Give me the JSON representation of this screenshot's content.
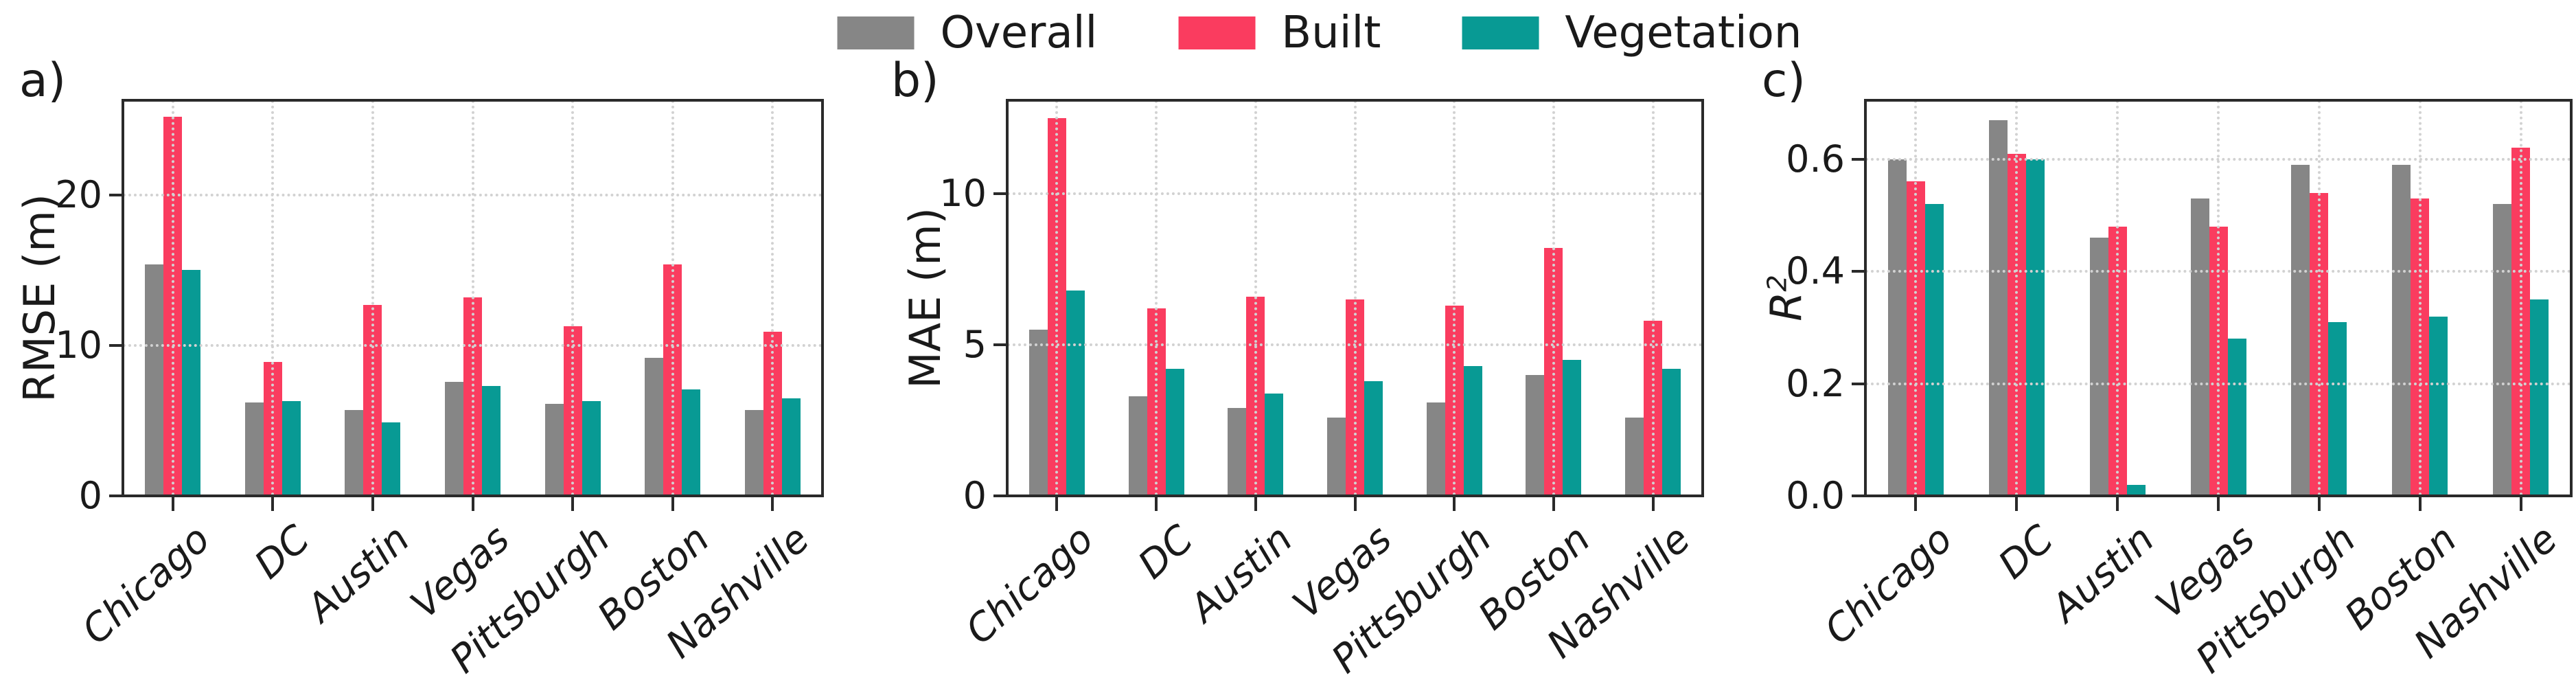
{
  "legend": {
    "items": [
      {
        "label": "Overall",
        "color": "#868686"
      },
      {
        "label": "Built",
        "color": "#fa3c5f"
      },
      {
        "label": "Vegetation",
        "color": "#089a94"
      }
    ]
  },
  "chart_data": [
    {
      "type": "bar",
      "panel_label": "a)",
      "ylabel": "RMSE (m)",
      "ylabel_superscript": "",
      "ylabel_italic": false,
      "categories": [
        "Chicago",
        "DC",
        "Austin",
        "Vegas",
        "Pittsburgh",
        "Boston",
        "Nashville"
      ],
      "xtick_rotation_deg": 42,
      "grid": true,
      "legend_position": "top-center",
      "ylim": [
        0,
        26.3
      ],
      "yticks": [
        {
          "value": 0,
          "label": "0"
        },
        {
          "value": 10,
          "label": "10"
        },
        {
          "value": 20,
          "label": "20"
        }
      ],
      "series": [
        {
          "name": "Overall",
          "color": "#868686",
          "values": [
            15.4,
            6.2,
            5.7,
            7.6,
            6.1,
            9.2,
            5.7
          ]
        },
        {
          "name": "Built",
          "color": "#fa3c5f",
          "values": [
            25.2,
            8.9,
            12.7,
            13.2,
            11.3,
            15.4,
            10.9
          ]
        },
        {
          "name": "Vegetation",
          "color": "#089a94",
          "values": [
            15.0,
            6.3,
            4.9,
            7.3,
            6.3,
            7.1,
            6.5
          ]
        }
      ]
    },
    {
      "type": "bar",
      "panel_label": "b)",
      "ylabel": "MAE (m)",
      "ylabel_superscript": "",
      "ylabel_italic": false,
      "categories": [
        "Chicago",
        "DC",
        "Austin",
        "Vegas",
        "Pittsburgh",
        "Boston",
        "Nashville"
      ],
      "xtick_rotation_deg": 42,
      "grid": true,
      "legend_position": "top-center",
      "ylim": [
        0,
        13.1
      ],
      "yticks": [
        {
          "value": 0,
          "label": "0"
        },
        {
          "value": 5,
          "label": "5"
        },
        {
          "value": 10,
          "label": "10"
        }
      ],
      "series": [
        {
          "name": "Overall",
          "color": "#868686",
          "values": [
            5.5,
            3.3,
            2.9,
            2.6,
            3.1,
            4.0,
            2.6
          ]
        },
        {
          "name": "Built",
          "color": "#fa3c5f",
          "values": [
            12.5,
            6.2,
            6.6,
            6.5,
            6.3,
            8.2,
            5.8
          ]
        },
        {
          "name": "Vegetation",
          "color": "#089a94",
          "values": [
            6.8,
            4.2,
            3.4,
            3.8,
            4.3,
            4.5,
            4.2
          ]
        }
      ]
    },
    {
      "type": "bar",
      "panel_label": "c)",
      "ylabel": "R",
      "ylabel_superscript": "2",
      "ylabel_italic": true,
      "categories": [
        "Chicago",
        "DC",
        "Austin",
        "Vegas",
        "Pittsburgh",
        "Boston",
        "Nashville"
      ],
      "xtick_rotation_deg": 42,
      "grid": true,
      "legend_position": "top-center",
      "ylim": [
        0,
        0.705
      ],
      "yticks": [
        {
          "value": 0,
          "label": "0.0"
        },
        {
          "value": 0.2,
          "label": "0.2"
        },
        {
          "value": 0.4,
          "label": "0.4"
        },
        {
          "value": 0.6,
          "label": "0.6"
        }
      ],
      "series": [
        {
          "name": "Overall",
          "color": "#868686",
          "values": [
            0.6,
            0.67,
            0.46,
            0.53,
            0.59,
            0.59,
            0.52
          ]
        },
        {
          "name": "Built",
          "color": "#fa3c5f",
          "values": [
            0.56,
            0.61,
            0.48,
            0.48,
            0.54,
            0.53,
            0.62
          ]
        },
        {
          "name": "Vegetation",
          "color": "#089a94",
          "values": [
            0.52,
            0.6,
            0.02,
            0.28,
            0.31,
            0.32,
            0.35
          ]
        }
      ]
    }
  ]
}
